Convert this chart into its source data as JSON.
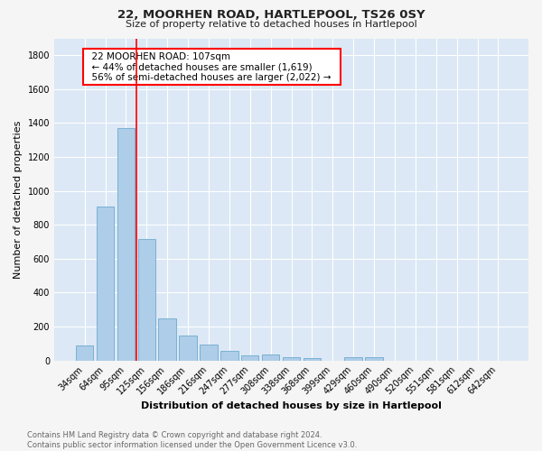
{
  "title1": "22, MOORHEN ROAD, HARTLEPOOL, TS26 0SY",
  "title2": "Size of property relative to detached houses in Hartlepool",
  "xlabel": "Distribution of detached houses by size in Hartlepool",
  "ylabel": "Number of detached properties",
  "footnote": "Contains HM Land Registry data © Crown copyright and database right 2024.\nContains public sector information licensed under the Open Government Licence v3.0.",
  "bar_labels": [
    "34sqm",
    "64sqm",
    "95sqm",
    "125sqm",
    "156sqm",
    "186sqm",
    "216sqm",
    "247sqm",
    "277sqm",
    "308sqm",
    "338sqm",
    "368sqm",
    "399sqm",
    "429sqm",
    "460sqm",
    "490sqm",
    "520sqm",
    "551sqm",
    "581sqm",
    "612sqm",
    "642sqm"
  ],
  "bar_values": [
    90,
    910,
    1370,
    715,
    250,
    145,
    95,
    55,
    28,
    33,
    20,
    15,
    0,
    18,
    20,
    0,
    0,
    0,
    0,
    0,
    0
  ],
  "bar_color": "#aecde8",
  "bar_edge_color": "#7ab0d4",
  "bg_color": "#dce8f5",
  "grid_color": "#ffffff",
  "annotation_text": "  22 MOORHEN ROAD: 107sqm  \n  ← 44% of detached houses are smaller (1,619)  \n  56% of semi-detached houses are larger (2,022) →  ",
  "vline_x": 2.5,
  "ylim": [
    0,
    1900
  ],
  "yticks": [
    0,
    200,
    400,
    600,
    800,
    1000,
    1200,
    1400,
    1600,
    1800
  ],
  "fig_bg": "#f5f5f5"
}
